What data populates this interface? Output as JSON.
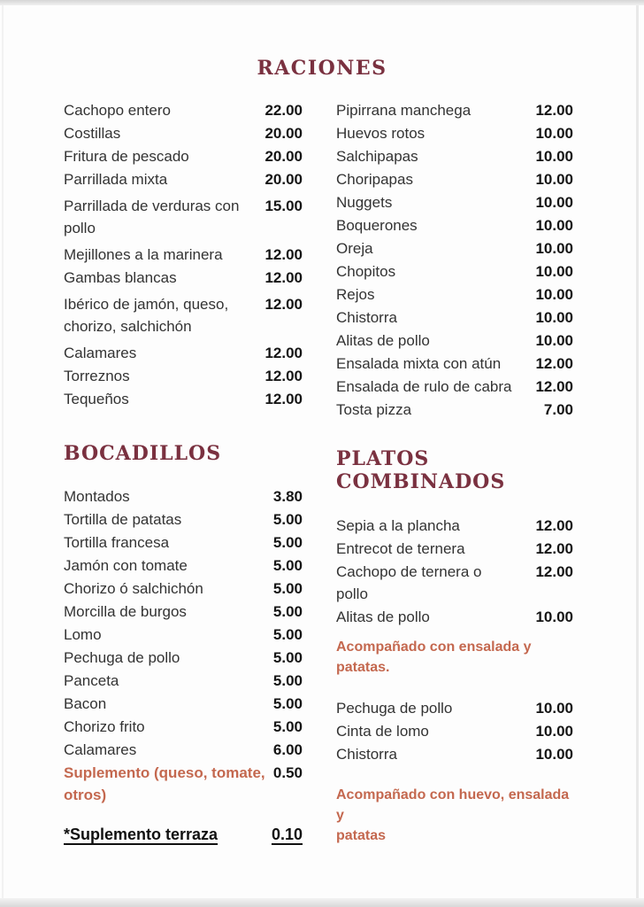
{
  "colors": {
    "heading": "#7a3140",
    "accent": "#c4684f",
    "item_text": "#333333",
    "price_text": "#151515"
  },
  "menu": {
    "raciones": {
      "title": "RACIONES",
      "left": [
        {
          "name": "Cachopo entero",
          "price": "22.00"
        },
        {
          "name": "Costillas",
          "price": "20.00"
        },
        {
          "name": "Fritura de pescado",
          "price": "20.00"
        },
        {
          "name": "Parrillada mixta",
          "price": "20.00"
        },
        {
          "name": "Parrillada de verduras con\npollo",
          "price": "15.00"
        },
        {
          "name": "Mejillones a la marinera",
          "price": "12.00"
        },
        {
          "name": "Gambas blancas",
          "price": "12.00"
        },
        {
          "name": "Ibérico de jamón, queso,\nchorizo, salchichón",
          "price": "12.00"
        },
        {
          "name": "Calamares",
          "price": "12.00"
        },
        {
          "name": "Torreznos",
          "price": "12.00"
        },
        {
          "name": "Tequeños",
          "price": "12.00"
        }
      ],
      "right": [
        {
          "name": "Pipirrana manchega",
          "price": "12.00"
        },
        {
          "name": "Huevos rotos",
          "price": "10.00"
        },
        {
          "name": "Salchipapas",
          "price": "10.00"
        },
        {
          "name": "Choripapas",
          "price": "10.00"
        },
        {
          "name": "Nuggets",
          "price": "10.00"
        },
        {
          "name": "Boquerones",
          "price": "10.00"
        },
        {
          "name": "Oreja",
          "price": "10.00"
        },
        {
          "name": "Chopitos",
          "price": "10.00"
        },
        {
          "name": "Rejos",
          "price": "10.00"
        },
        {
          "name": "Chistorra",
          "price": "10.00"
        },
        {
          "name": "Alitas de pollo",
          "price": "10.00"
        },
        {
          "name": "Ensalada mixta con atún",
          "price": "12.00"
        },
        {
          "name": "Ensalada de rulo de cabra",
          "price": "12.00"
        },
        {
          "name": "Tosta pizza",
          "price": "7.00"
        }
      ]
    },
    "bocadillos": {
      "title": "BOCADILLOS",
      "items": [
        {
          "name": "Montados",
          "price": "3.80"
        },
        {
          "name": "Tortilla de patatas",
          "price": "5.00"
        },
        {
          "name": "Tortilla francesa",
          "price": "5.00"
        },
        {
          "name": "Jamón con tomate",
          "price": "5.00"
        },
        {
          "name": "Chorizo ó salchichón",
          "price": "5.00"
        },
        {
          "name": "Morcilla de burgos",
          "price": "5.00"
        },
        {
          "name": "Lomo",
          "price": "5.00"
        },
        {
          "name": "Pechuga de pollo",
          "price": "5.00"
        },
        {
          "name": "Panceta",
          "price": "5.00"
        },
        {
          "name": "Bacon",
          "price": "5.00"
        },
        {
          "name": "Chorizo frito",
          "price": "5.00"
        },
        {
          "name": "Calamares",
          "price": "6.00"
        },
        {
          "name": "Suplemento (queso, tomate,\notros)",
          "price": "0.50"
        }
      ]
    },
    "platos": {
      "title": "PLATOS COMBINADOS",
      "group1": [
        {
          "name": "Sepia a la plancha",
          "price": "12.00"
        },
        {
          "name": "Entrecot de ternera",
          "price": "12.00"
        },
        {
          "name": "Cachopo de ternera o\npollo",
          "price": "12.00"
        },
        {
          "name": "Alitas de pollo",
          "price": "10.00"
        }
      ],
      "note1": "Acompañado con ensalada y patatas.",
      "group2": [
        {
          "name": "Pechuga de pollo",
          "price": "10.00"
        },
        {
          "name": "Cinta de lomo",
          "price": "10.00"
        },
        {
          "name": "Chistorra",
          "price": "10.00"
        }
      ],
      "note2": "Acompañado con huevo, ensalada y\npatatas"
    },
    "footer": {
      "label": "*Suplemento terraza",
      "price": "0.10"
    }
  }
}
